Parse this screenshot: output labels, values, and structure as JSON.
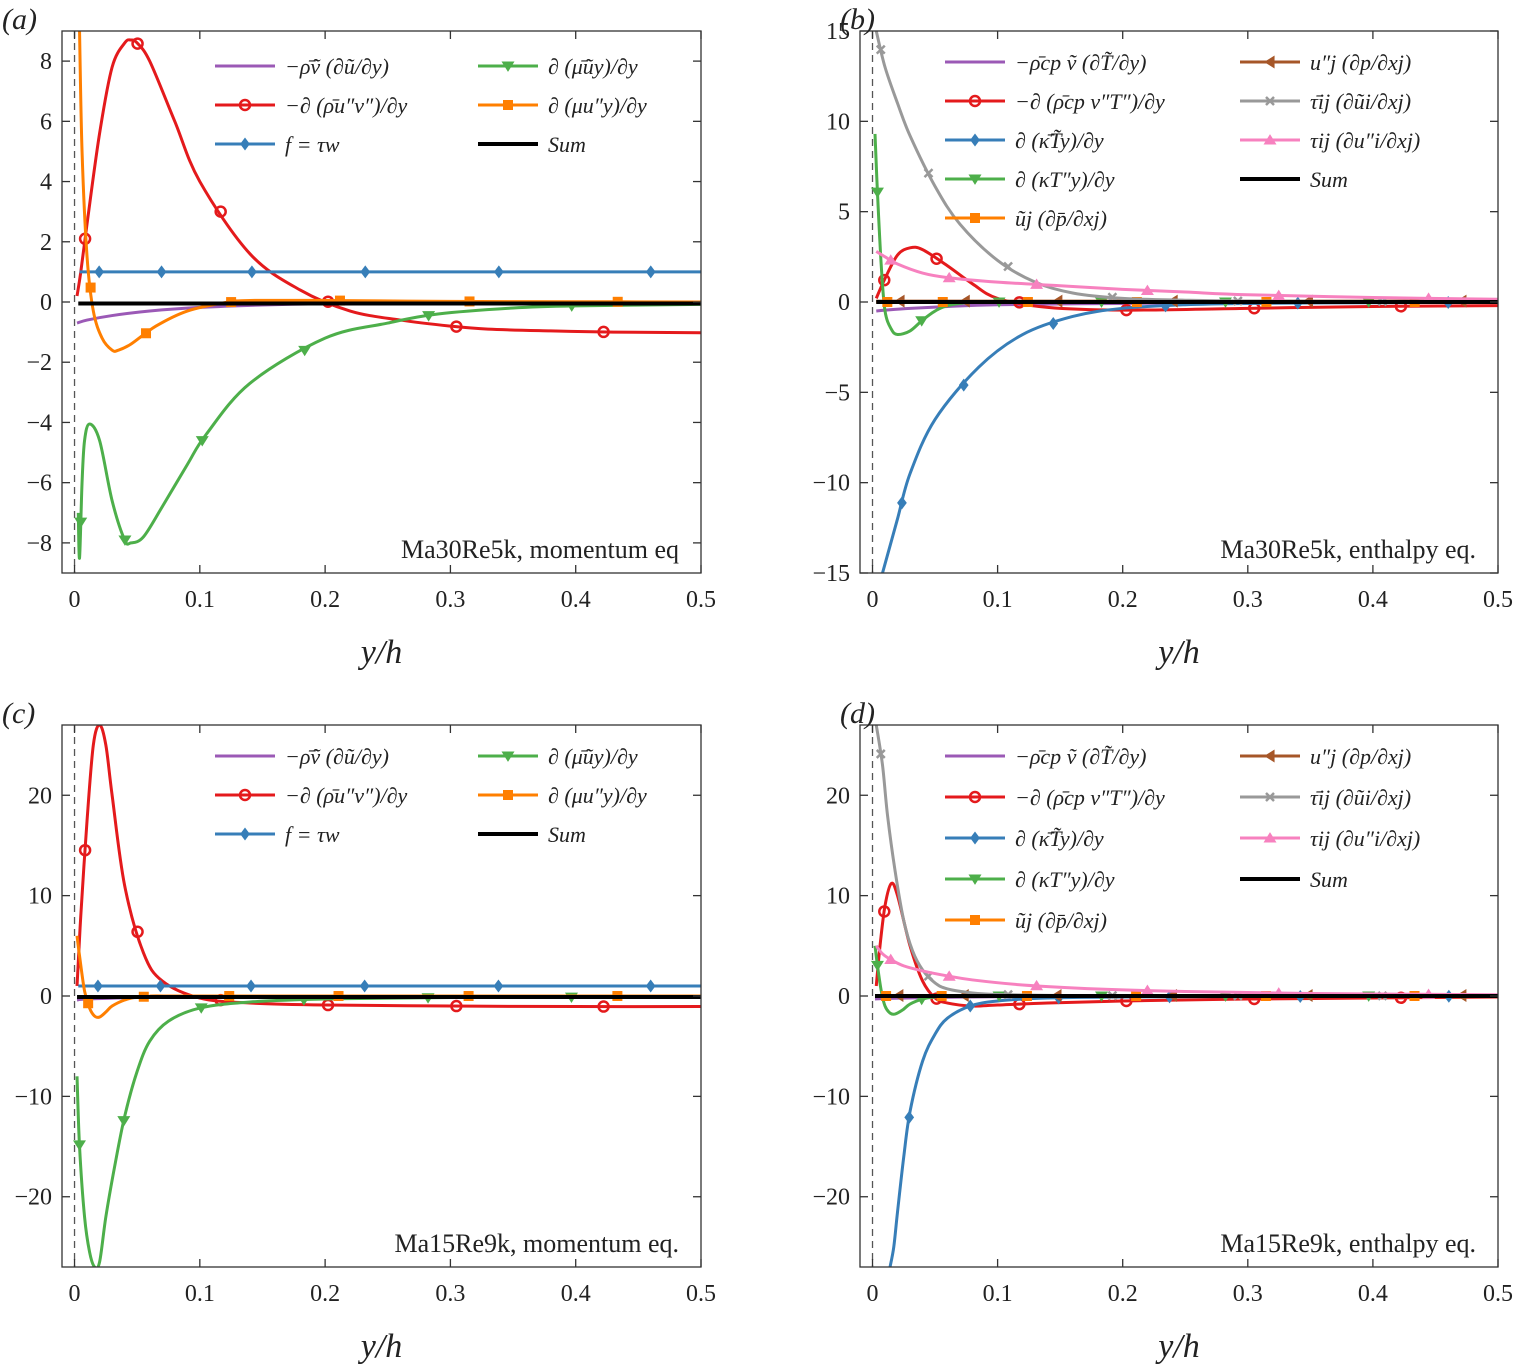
{
  "figure": {
    "panels": [
      "(a)",
      "(b)",
      "(c)",
      "(d)"
    ]
  },
  "chart_data": [
    {
      "type": "line",
      "panel_label": "(a)",
      "annotation": "Ma30Re5k, momentum eq",
      "xlabel": "y/h",
      "xlim": [
        -0.01,
        0.5
      ],
      "ylim": [
        -9,
        9
      ],
      "xticks": [
        "0",
        "0.1",
        "0.2",
        "0.3",
        "0.4",
        "0.5"
      ],
      "yticks": [
        "8",
        "6",
        "4",
        "2",
        "0",
        "−2",
        "−4",
        "−6",
        "−8"
      ],
      "legend_columns": 2,
      "series": [
        {
          "name": "−ρ̄ṽ (∂ũ/∂y)",
          "color": "#9b59b6",
          "marker": "none",
          "x": [
            0.002,
            0.01,
            0.03,
            0.06,
            0.1,
            0.15,
            0.2,
            0.3,
            0.4,
            0.5
          ],
          "y": [
            -0.7,
            -0.6,
            -0.45,
            -0.3,
            -0.18,
            -0.1,
            -0.06,
            -0.03,
            -0.02,
            -0.01
          ]
        },
        {
          "name": "−∂ (ρ̄u″v″)/∂y",
          "color": "#e41a1c",
          "marker": "circle",
          "x": [
            0.002,
            0.005,
            0.01,
            0.02,
            0.03,
            0.04,
            0.045,
            0.05,
            0.06,
            0.08,
            0.1,
            0.14,
            0.18,
            0.22,
            0.26,
            0.3,
            0.33,
            0.38,
            0.43,
            0.5
          ],
          "y": [
            0.2,
            1.0,
            2.6,
            5.6,
            7.8,
            8.6,
            8.7,
            8.6,
            8.0,
            6.0,
            4.0,
            1.6,
            0.4,
            -0.3,
            -0.6,
            -0.8,
            -0.9,
            -0.96,
            -1.0,
            -1.02
          ]
        },
        {
          "name": "f = τw",
          "color": "#377eb8",
          "marker": "diamond",
          "x": [
            0.004,
            0.5
          ],
          "y": [
            1.0,
            1.0
          ]
        },
        {
          "name": "∂ (μ̄ũy)/∂y",
          "color": "#4daf4a",
          "marker": "triangle-down",
          "x": [
            0.003,
            0.004,
            0.006,
            0.008,
            0.012,
            0.02,
            0.03,
            0.04,
            0.045,
            0.055,
            0.07,
            0.09,
            0.105,
            0.14,
            0.2,
            0.25,
            0.29,
            0.35,
            0.4,
            0.5
          ],
          "y": [
            -7.0,
            -8.5,
            -6.0,
            -4.6,
            -4.05,
            -4.6,
            -6.6,
            -7.9,
            -8.0,
            -7.8,
            -6.8,
            -5.4,
            -4.4,
            -2.7,
            -1.2,
            -0.7,
            -0.4,
            -0.2,
            -0.13,
            -0.08
          ]
        },
        {
          "name": "∂ (μu″y)/∂y",
          "color": "#ff7f00",
          "marker": "square",
          "x": [
            0.004,
            0.006,
            0.01,
            0.015,
            0.022,
            0.03,
            0.035,
            0.045,
            0.065,
            0.09,
            0.12,
            0.14,
            0.2,
            0.3,
            0.4,
            0.5
          ],
          "y": [
            9.0,
            5.0,
            1.5,
            -0.3,
            -1.2,
            -1.6,
            -1.6,
            -1.4,
            -0.8,
            -0.3,
            -0.02,
            0.05,
            0.05,
            0.02,
            0.01,
            0.0
          ]
        },
        {
          "name": "Sum",
          "color": "#000000",
          "marker": "none",
          "x": [
            0.003,
            0.5
          ],
          "y": [
            -0.05,
            -0.05
          ]
        }
      ],
      "legend_order": [
        0,
        3,
        1,
        4,
        2,
        5
      ]
    },
    {
      "type": "line",
      "panel_label": "(b)",
      "annotation": "Ma30Re5k, enthalpy eq.",
      "xlabel": "y/h",
      "xlim": [
        -0.01,
        0.5
      ],
      "ylim": [
        -15,
        15
      ],
      "xticks": [
        "0",
        "0.1",
        "0.2",
        "0.3",
        "0.4",
        "0.5"
      ],
      "yticks": [
        "15",
        "10",
        "5",
        "0",
        "−5",
        "−10",
        "−15"
      ],
      "legend_columns": 2,
      "series": [
        {
          "name": "−ρ̄cp ṽ (∂T̃/∂y)",
          "color": "#9b59b6",
          "marker": "none",
          "x": [
            0.003,
            0.01,
            0.03,
            0.06,
            0.1,
            0.2,
            0.3,
            0.5
          ],
          "y": [
            -0.5,
            -0.45,
            -0.35,
            -0.25,
            -0.15,
            -0.08,
            -0.04,
            -0.02
          ]
        },
        {
          "name": "−∂ (ρ̄cp v″T″)/∂y",
          "color": "#e41a1c",
          "marker": "circle",
          "x": [
            0.003,
            0.01,
            0.02,
            0.03,
            0.04,
            0.06,
            0.08,
            0.1,
            0.14,
            0.2,
            0.3,
            0.4,
            0.5
          ],
          "y": [
            0.2,
            1.3,
            2.6,
            3.0,
            2.9,
            2.0,
            1.0,
            0.2,
            -0.3,
            -0.45,
            -0.35,
            -0.25,
            -0.2
          ]
        },
        {
          "name": "∂ (κ̄T̃y)/∂y",
          "color": "#377eb8",
          "marker": "diamond",
          "x": [
            0.008,
            0.012,
            0.02,
            0.03,
            0.05,
            0.085,
            0.12,
            0.16,
            0.2,
            0.25,
            0.3,
            0.4,
            0.5
          ],
          "y": [
            -15,
            -14,
            -12,
            -9.5,
            -6.5,
            -3.6,
            -1.8,
            -0.8,
            -0.35,
            -0.15,
            -0.08,
            -0.04,
            -0.02
          ]
        },
        {
          "name": "∂ (κT″y)/∂y",
          "color": "#4daf4a",
          "marker": "triangle-down",
          "x": [
            0.002,
            0.004,
            0.007,
            0.01,
            0.015,
            0.02,
            0.03,
            0.04,
            0.05,
            0.06,
            0.08,
            0.1,
            0.15,
            0.2,
            0.3,
            0.5
          ],
          "y": [
            9.3,
            6.0,
            2.0,
            -0.5,
            -1.5,
            -1.8,
            -1.6,
            -1.0,
            -0.5,
            -0.2,
            0.0,
            0.0,
            0.0,
            0.0,
            0.0,
            0.0
          ]
        },
        {
          "name": "ũj (∂p̄/∂xj)",
          "color": "#ff7f00",
          "marker": "square",
          "x": [
            0.003,
            0.5
          ],
          "y": [
            0.0,
            0.0
          ]
        },
        {
          "name": "u″j (∂p/∂xj)",
          "color": "#a65628",
          "marker": "triangle-left",
          "x": [
            0.003,
            0.5
          ],
          "y": [
            0.05,
            0.05
          ]
        },
        {
          "name": "τ̄ij (∂ũi/∂xj)",
          "color": "#999999",
          "marker": "x",
          "x": [
            0.003,
            0.01,
            0.02,
            0.03,
            0.05,
            0.07,
            0.1,
            0.13,
            0.16,
            0.2,
            0.25,
            0.3,
            0.4,
            0.5
          ],
          "y": [
            15,
            13.0,
            11.0,
            9.2,
            6.4,
            4.3,
            2.3,
            1.1,
            0.5,
            0.2,
            0.1,
            0.05,
            0.03,
            0.02
          ]
        },
        {
          "name": "τij (∂u″i/∂xj)",
          "color": "#f781bf",
          "marker": "triangle-up",
          "x": [
            0.003,
            0.01,
            0.02,
            0.04,
            0.06,
            0.1,
            0.15,
            0.2,
            0.25,
            0.3,
            0.4,
            0.5
          ],
          "y": [
            2.8,
            2.5,
            2.1,
            1.6,
            1.35,
            1.1,
            0.9,
            0.7,
            0.55,
            0.4,
            0.25,
            0.15
          ]
        },
        {
          "name": "Sum",
          "color": "#000000",
          "marker": "none",
          "x": [
            0.003,
            0.5
          ],
          "y": [
            0.0,
            0.0
          ]
        }
      ],
      "legend_order": [
        0,
        5,
        1,
        6,
        2,
        7,
        3,
        8,
        4
      ]
    },
    {
      "type": "line",
      "panel_label": "(c)",
      "annotation": "Ma15Re9k, momentum eq.",
      "xlabel": "y/h",
      "xlim": [
        -0.01,
        0.5
      ],
      "ylim": [
        -27,
        27
      ],
      "xticks": [
        "0",
        "0.1",
        "0.2",
        "0.3",
        "0.4",
        "0.5"
      ],
      "yticks": [
        "20",
        "10",
        "0",
        "−10",
        "−20"
      ],
      "legend_columns": 2,
      "series": [
        {
          "name": "−ρ̄ṽ (∂ũ/∂y)",
          "color": "#9b59b6",
          "marker": "none",
          "x": [
            0.002,
            0.01,
            0.05,
            0.1,
            0.2,
            0.5
          ],
          "y": [
            -0.4,
            -0.3,
            -0.15,
            -0.08,
            -0.04,
            -0.01
          ]
        },
        {
          "name": "−∂ (ρ̄u″v″)/∂y",
          "color": "#e41a1c",
          "marker": "circle",
          "x": [
            0.002,
            0.005,
            0.01,
            0.015,
            0.02,
            0.025,
            0.03,
            0.04,
            0.055,
            0.07,
            0.1,
            0.14,
            0.2,
            0.3,
            0.4,
            0.5
          ],
          "y": [
            1.0,
            8.0,
            17.5,
            25.0,
            27.0,
            25.0,
            20.0,
            11.0,
            4.3,
            1.5,
            -0.2,
            -0.7,
            -0.9,
            -1.0,
            -1.05,
            -1.05
          ]
        },
        {
          "name": "f = τw",
          "color": "#377eb8",
          "marker": "diamond",
          "x": [
            0.003,
            0.5
          ],
          "y": [
            1.0,
            1.0
          ]
        },
        {
          "name": "∂ (μ̄ũy)/∂y",
          "color": "#4daf4a",
          "marker": "triangle-down",
          "x": [
            0.002,
            0.004,
            0.008,
            0.012,
            0.016,
            0.02,
            0.025,
            0.032,
            0.04,
            0.05,
            0.06,
            0.075,
            0.1,
            0.14,
            0.2,
            0.3,
            0.5
          ],
          "y": [
            -8.0,
            -15.0,
            -22.0,
            -25.5,
            -27.0,
            -26.5,
            -22.0,
            -17.0,
            -12.0,
            -7.5,
            -4.5,
            -2.5,
            -1.2,
            -0.6,
            -0.3,
            -0.15,
            -0.08
          ]
        },
        {
          "name": "∂ (μu″y)/∂y",
          "color": "#ff7f00",
          "marker": "square",
          "x": [
            0.002,
            0.004,
            0.008,
            0.012,
            0.016,
            0.02,
            0.025,
            0.03,
            0.04,
            0.05,
            0.07,
            0.1,
            0.5
          ],
          "y": [
            6.0,
            4.0,
            0.5,
            -1.2,
            -2.0,
            -2.1,
            -1.6,
            -1.0,
            -0.4,
            -0.1,
            0.0,
            0.0,
            0.0
          ]
        },
        {
          "name": "Sum",
          "color": "#000000",
          "marker": "none",
          "x": [
            0.002,
            0.5
          ],
          "y": [
            -0.1,
            -0.1
          ]
        }
      ],
      "legend_order": [
        0,
        3,
        1,
        4,
        2,
        5
      ]
    },
    {
      "type": "line",
      "panel_label": "(d)",
      "annotation": "Ma15Re9k, enthalpy eq.",
      "xlabel": "y/h",
      "xlim": [
        -0.01,
        0.5
      ],
      "ylim": [
        -27,
        27
      ],
      "xticks": [
        "0",
        "0.1",
        "0.2",
        "0.3",
        "0.4",
        "0.5"
      ],
      "yticks": [
        "20",
        "10",
        "0",
        "−10",
        "−20"
      ],
      "legend_columns": 2,
      "series": [
        {
          "name": "−ρ̄cp ṽ (∂T̃/∂y)",
          "color": "#9b59b6",
          "marker": "none",
          "x": [
            0.002,
            0.01,
            0.05,
            0.1,
            0.2,
            0.5
          ],
          "y": [
            -0.3,
            -0.25,
            -0.15,
            -0.08,
            -0.04,
            -0.01
          ]
        },
        {
          "name": "−∂ (ρ̄cp v″T″)/∂y",
          "color": "#e41a1c",
          "marker": "circle",
          "x": [
            0.003,
            0.006,
            0.01,
            0.015,
            0.02,
            0.03,
            0.04,
            0.05,
            0.06,
            0.08,
            0.1,
            0.14,
            0.2,
            0.3,
            0.4,
            0.5
          ],
          "y": [
            1.0,
            5.0,
            9.0,
            11.2,
            10.0,
            5.0,
            1.5,
            -0.2,
            -0.7,
            -1.0,
            -0.9,
            -0.7,
            -0.5,
            -0.3,
            -0.2,
            -0.1
          ]
        },
        {
          "name": "∂ (κ̄T̃y)/∂y",
          "color": "#377eb8",
          "marker": "diamond",
          "x": [
            0.014,
            0.017,
            0.02,
            0.025,
            0.03,
            0.04,
            0.05,
            0.06,
            0.078,
            0.1,
            0.14,
            0.2,
            0.3,
            0.5
          ],
          "y": [
            -27.0,
            -25.0,
            -21.5,
            -16.0,
            -11.5,
            -6.5,
            -3.8,
            -2.2,
            -1.0,
            -0.5,
            -0.2,
            -0.1,
            -0.05,
            -0.02
          ]
        },
        {
          "name": "∂ (κT″y)/∂y",
          "color": "#4daf4a",
          "marker": "triangle-down",
          "x": [
            0.002,
            0.004,
            0.007,
            0.01,
            0.014,
            0.018,
            0.024,
            0.03,
            0.04,
            0.05,
            0.07,
            0.5
          ],
          "y": [
            5.0,
            3.0,
            0.5,
            -1.0,
            -1.7,
            -1.8,
            -1.4,
            -0.8,
            -0.3,
            -0.1,
            0.0,
            0.0
          ]
        },
        {
          "name": "ũj (∂p̄/∂xj)",
          "color": "#ff7f00",
          "marker": "square",
          "x": [
            0.002,
            0.5
          ],
          "y": [
            0.0,
            0.0
          ]
        },
        {
          "name": "u″j (∂p/∂xj)",
          "color": "#a65628",
          "marker": "triangle-left",
          "x": [
            0.002,
            0.5
          ],
          "y": [
            0.05,
            0.05
          ]
        },
        {
          "name": "τ̄ij (∂ũi/∂xj)",
          "color": "#999999",
          "marker": "x",
          "x": [
            0.003,
            0.008,
            0.012,
            0.018,
            0.025,
            0.032,
            0.04,
            0.05,
            0.06,
            0.08,
            0.1,
            0.15,
            0.2,
            0.5
          ],
          "y": [
            27.0,
            23.0,
            18.0,
            12.5,
            7.5,
            4.5,
            2.6,
            1.3,
            0.7,
            0.3,
            0.15,
            0.05,
            0.03,
            0.01
          ]
        },
        {
          "name": "τij (∂u″i/∂xj)",
          "color": "#f781bf",
          "marker": "triangle-up",
          "x": [
            0.003,
            0.008,
            0.015,
            0.025,
            0.04,
            0.06,
            0.08,
            0.12,
            0.18,
            0.25,
            0.35,
            0.5
          ],
          "y": [
            5.0,
            4.2,
            3.6,
            3.0,
            2.5,
            2.0,
            1.6,
            1.1,
            0.7,
            0.45,
            0.25,
            0.12
          ]
        },
        {
          "name": "Sum",
          "color": "#000000",
          "marker": "none",
          "x": [
            0.002,
            0.5
          ],
          "y": [
            0.0,
            0.0
          ]
        }
      ],
      "legend_order": [
        0,
        5,
        1,
        6,
        2,
        7,
        3,
        8,
        4
      ]
    }
  ]
}
